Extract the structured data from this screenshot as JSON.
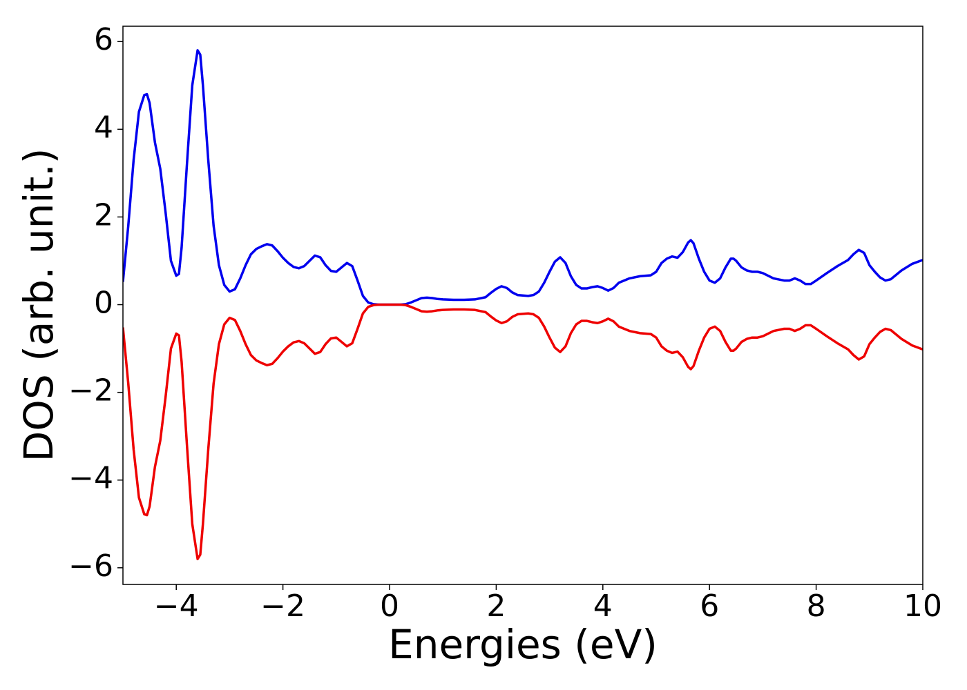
{
  "chart_data": {
    "type": "line",
    "xlabel": "Energies (eV)",
    "ylabel": "DOS (arb. unit.)",
    "x": [
      -5,
      -4.9,
      -4.8,
      -4.7,
      -4.6,
      -4.55,
      -4.5,
      -4.4,
      -4.3,
      -4.2,
      -4.1,
      -4.0,
      -3.95,
      -3.9,
      -3.8,
      -3.7,
      -3.6,
      -3.55,
      -3.5,
      -3.4,
      -3.3,
      -3.2,
      -3.1,
      -3.0,
      -2.9,
      -2.8,
      -2.7,
      -2.6,
      -2.5,
      -2.4,
      -2.3,
      -2.2,
      -2.1,
      -2.0,
      -1.9,
      -1.8,
      -1.7,
      -1.6,
      -1.5,
      -1.4,
      -1.3,
      -1.2,
      -1.1,
      -1.0,
      -0.9,
      -0.8,
      -0.7,
      -0.6,
      -0.5,
      -0.4,
      -0.3,
      -0.2,
      0,
      0.2,
      0.3,
      0.4,
      0.5,
      0.6,
      0.7,
      0.8,
      0.9,
      1.0,
      1.2,
      1.4,
      1.6,
      1.8,
      1.9,
      2.0,
      2.1,
      2.2,
      2.3,
      2.4,
      2.6,
      2.7,
      2.8,
      2.9,
      3.0,
      3.1,
      3.2,
      3.3,
      3.4,
      3.5,
      3.6,
      3.7,
      3.8,
      3.9,
      4.0,
      4.1,
      4.2,
      4.3,
      4.5,
      4.7,
      4.9,
      5.0,
      5.1,
      5.2,
      5.3,
      5.4,
      5.5,
      5.6,
      5.65,
      5.7,
      5.8,
      5.9,
      6.0,
      6.1,
      6.2,
      6.3,
      6.4,
      6.45,
      6.5,
      6.6,
      6.7,
      6.8,
      6.9,
      7.0,
      7.2,
      7.4,
      7.5,
      7.6,
      7.7,
      7.8,
      7.9,
      8.0,
      8.2,
      8.4,
      8.6,
      8.7,
      8.8,
      8.9,
      9.0,
      9.1,
      9.2,
      9.3,
      9.4,
      9.6,
      9.8,
      10.0
    ],
    "series": [
      {
        "color": "#0000ee",
        "values": [
          0.52,
          1.8,
          3.3,
          4.4,
          4.78,
          4.8,
          4.6,
          3.7,
          3.1,
          2.1,
          1.0,
          0.66,
          0.7,
          1.3,
          3.2,
          5.0,
          5.8,
          5.7,
          5.0,
          3.3,
          1.8,
          0.9,
          0.45,
          0.3,
          0.35,
          0.6,
          0.9,
          1.15,
          1.27,
          1.33,
          1.38,
          1.35,
          1.22,
          1.07,
          0.95,
          0.86,
          0.83,
          0.88,
          1.0,
          1.12,
          1.08,
          0.9,
          0.77,
          0.75,
          0.85,
          0.95,
          0.88,
          0.55,
          0.2,
          0.05,
          0.01,
          0,
          0,
          0,
          0.01,
          0.05,
          0.1,
          0.15,
          0.16,
          0.15,
          0.13,
          0.12,
          0.11,
          0.11,
          0.12,
          0.17,
          0.27,
          0.36,
          0.42,
          0.38,
          0.28,
          0.22,
          0.2,
          0.22,
          0.3,
          0.5,
          0.75,
          0.98,
          1.08,
          0.95,
          0.65,
          0.45,
          0.37,
          0.37,
          0.4,
          0.42,
          0.38,
          0.32,
          0.38,
          0.5,
          0.6,
          0.65,
          0.67,
          0.75,
          0.95,
          1.05,
          1.1,
          1.07,
          1.2,
          1.42,
          1.47,
          1.4,
          1.05,
          0.75,
          0.55,
          0.5,
          0.6,
          0.85,
          1.05,
          1.05,
          1.0,
          0.85,
          0.78,
          0.75,
          0.75,
          0.72,
          0.6,
          0.55,
          0.55,
          0.6,
          0.55,
          0.47,
          0.47,
          0.55,
          0.72,
          0.88,
          1.02,
          1.15,
          1.25,
          1.18,
          0.9,
          0.75,
          0.62,
          0.55,
          0.58,
          0.78,
          0.93,
          1.02
        ]
      },
      {
        "color": "#ee0000",
        "values": [
          -0.52,
          -1.8,
          -3.3,
          -4.4,
          -4.78,
          -4.8,
          -4.6,
          -3.7,
          -3.1,
          -2.1,
          -1.0,
          -0.66,
          -0.7,
          -1.3,
          -3.2,
          -5.0,
          -5.8,
          -5.7,
          -5.0,
          -3.3,
          -1.8,
          -0.9,
          -0.45,
          -0.3,
          -0.35,
          -0.6,
          -0.9,
          -1.15,
          -1.27,
          -1.33,
          -1.38,
          -1.35,
          -1.22,
          -1.07,
          -0.95,
          -0.86,
          -0.83,
          -0.88,
          -1.0,
          -1.12,
          -1.08,
          -0.9,
          -0.77,
          -0.75,
          -0.85,
          -0.95,
          -0.88,
          -0.55,
          -0.2,
          -0.05,
          -0.01,
          0,
          0,
          0,
          -0.01,
          -0.05,
          -0.1,
          -0.15,
          -0.16,
          -0.15,
          -0.13,
          -0.12,
          -0.11,
          -0.11,
          -0.12,
          -0.17,
          -0.27,
          -0.36,
          -0.42,
          -0.38,
          -0.28,
          -0.22,
          -0.2,
          -0.22,
          -0.3,
          -0.5,
          -0.75,
          -0.98,
          -1.08,
          -0.95,
          -0.65,
          -0.45,
          -0.37,
          -0.37,
          -0.4,
          -0.42,
          -0.38,
          -0.32,
          -0.38,
          -0.5,
          -0.6,
          -0.65,
          -0.67,
          -0.75,
          -0.95,
          -1.05,
          -1.1,
          -1.07,
          -1.2,
          -1.42,
          -1.47,
          -1.4,
          -1.05,
          -0.75,
          -0.55,
          -0.5,
          -0.6,
          -0.85,
          -1.05,
          -1.05,
          -1.0,
          -0.85,
          -0.78,
          -0.75,
          -0.75,
          -0.72,
          -0.6,
          -0.55,
          -0.55,
          -0.6,
          -0.55,
          -0.47,
          -0.47,
          -0.55,
          -0.72,
          -0.88,
          -1.02,
          -1.15,
          -1.25,
          -1.18,
          -0.9,
          -0.75,
          -0.62,
          -0.55,
          -0.58,
          -0.78,
          -0.93,
          -1.02
        ]
      }
    ],
    "xlim": [
      -5,
      10
    ],
    "xticks": [
      {
        "value": -4,
        "label": "−4"
      },
      {
        "value": -2,
        "label": "−2"
      },
      0,
      2,
      4,
      6,
      8,
      10
    ],
    "ylim": [
      -6.38,
      6.35
    ],
    "yticks": [
      {
        "value": -6,
        "label": "−6"
      },
      {
        "value": -4,
        "label": "−4"
      },
      {
        "value": -2,
        "label": "−2"
      },
      0,
      2,
      4,
      6
    ],
    "grid": false
  }
}
